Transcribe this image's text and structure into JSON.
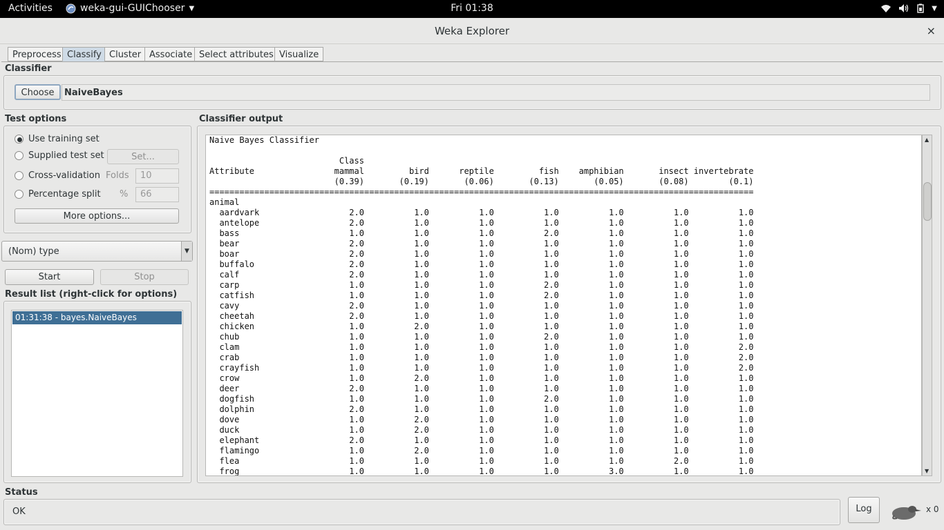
{
  "system": {
    "activities": "Activities",
    "app_name": "weka-gui-GUIChooser",
    "clock": "Fri 01:38"
  },
  "window": {
    "title": "Weka Explorer",
    "close": "×"
  },
  "tabs": [
    "Preprocess",
    "Classify",
    "Cluster",
    "Associate",
    "Select attributes",
    "Visualize"
  ],
  "classifier": {
    "section": "Classifier",
    "choose_label": "Choose",
    "name": "NaiveBayes"
  },
  "test_options": {
    "section": "Test options",
    "use_training": "Use training set",
    "supplied": "Supplied test set",
    "set_button": "Set...",
    "cross_validation": "Cross-validation",
    "folds_label": "Folds",
    "folds_value": "10",
    "percentage_split": "Percentage split",
    "percent_label": "%",
    "percent_value": "66",
    "more_options": "More options..."
  },
  "class_select": "(Nom) type",
  "controls": {
    "start": "Start",
    "stop": "Stop"
  },
  "result_list": {
    "section": "Result list (right-click for options)",
    "items": [
      "01:31:38 - bayes.NaiveBayes"
    ]
  },
  "output": {
    "section": "Classifier output",
    "title": "Naive Bayes Classifier",
    "headers": [
      "Class",
      "mammal",
      "bird",
      "reptile",
      "fish",
      "amphibian",
      "insect",
      "invertebrate"
    ],
    "priors": [
      "(0.39)",
      "(0.19)",
      "(0.06)",
      "(0.13)",
      "(0.05)",
      "(0.08)",
      "(0.1)"
    ],
    "attribute_label": "Attribute",
    "attribute_name": "animal",
    "rows": [
      {
        "name": "aardvark",
        "v": [
          "2.0",
          "1.0",
          "1.0",
          "1.0",
          "1.0",
          "1.0",
          "1.0"
        ]
      },
      {
        "name": "antelope",
        "v": [
          "2.0",
          "1.0",
          "1.0",
          "1.0",
          "1.0",
          "1.0",
          "1.0"
        ]
      },
      {
        "name": "bass",
        "v": [
          "1.0",
          "1.0",
          "1.0",
          "2.0",
          "1.0",
          "1.0",
          "1.0"
        ]
      },
      {
        "name": "bear",
        "v": [
          "2.0",
          "1.0",
          "1.0",
          "1.0",
          "1.0",
          "1.0",
          "1.0"
        ]
      },
      {
        "name": "boar",
        "v": [
          "2.0",
          "1.0",
          "1.0",
          "1.0",
          "1.0",
          "1.0",
          "1.0"
        ]
      },
      {
        "name": "buffalo",
        "v": [
          "2.0",
          "1.0",
          "1.0",
          "1.0",
          "1.0",
          "1.0",
          "1.0"
        ]
      },
      {
        "name": "calf",
        "v": [
          "2.0",
          "1.0",
          "1.0",
          "1.0",
          "1.0",
          "1.0",
          "1.0"
        ]
      },
      {
        "name": "carp",
        "v": [
          "1.0",
          "1.0",
          "1.0",
          "2.0",
          "1.0",
          "1.0",
          "1.0"
        ]
      },
      {
        "name": "catfish",
        "v": [
          "1.0",
          "1.0",
          "1.0",
          "2.0",
          "1.0",
          "1.0",
          "1.0"
        ]
      },
      {
        "name": "cavy",
        "v": [
          "2.0",
          "1.0",
          "1.0",
          "1.0",
          "1.0",
          "1.0",
          "1.0"
        ]
      },
      {
        "name": "cheetah",
        "v": [
          "2.0",
          "1.0",
          "1.0",
          "1.0",
          "1.0",
          "1.0",
          "1.0"
        ]
      },
      {
        "name": "chicken",
        "v": [
          "1.0",
          "2.0",
          "1.0",
          "1.0",
          "1.0",
          "1.0",
          "1.0"
        ]
      },
      {
        "name": "chub",
        "v": [
          "1.0",
          "1.0",
          "1.0",
          "2.0",
          "1.0",
          "1.0",
          "1.0"
        ]
      },
      {
        "name": "clam",
        "v": [
          "1.0",
          "1.0",
          "1.0",
          "1.0",
          "1.0",
          "1.0",
          "2.0"
        ]
      },
      {
        "name": "crab",
        "v": [
          "1.0",
          "1.0",
          "1.0",
          "1.0",
          "1.0",
          "1.0",
          "2.0"
        ]
      },
      {
        "name": "crayfish",
        "v": [
          "1.0",
          "1.0",
          "1.0",
          "1.0",
          "1.0",
          "1.0",
          "2.0"
        ]
      },
      {
        "name": "crow",
        "v": [
          "1.0",
          "2.0",
          "1.0",
          "1.0",
          "1.0",
          "1.0",
          "1.0"
        ]
      },
      {
        "name": "deer",
        "v": [
          "2.0",
          "1.0",
          "1.0",
          "1.0",
          "1.0",
          "1.0",
          "1.0"
        ]
      },
      {
        "name": "dogfish",
        "v": [
          "1.0",
          "1.0",
          "1.0",
          "2.0",
          "1.0",
          "1.0",
          "1.0"
        ]
      },
      {
        "name": "dolphin",
        "v": [
          "2.0",
          "1.0",
          "1.0",
          "1.0",
          "1.0",
          "1.0",
          "1.0"
        ]
      },
      {
        "name": "dove",
        "v": [
          "1.0",
          "2.0",
          "1.0",
          "1.0",
          "1.0",
          "1.0",
          "1.0"
        ]
      },
      {
        "name": "duck",
        "v": [
          "1.0",
          "2.0",
          "1.0",
          "1.0",
          "1.0",
          "1.0",
          "1.0"
        ]
      },
      {
        "name": "elephant",
        "v": [
          "2.0",
          "1.0",
          "1.0",
          "1.0",
          "1.0",
          "1.0",
          "1.0"
        ]
      },
      {
        "name": "flamingo",
        "v": [
          "1.0",
          "2.0",
          "1.0",
          "1.0",
          "1.0",
          "1.0",
          "1.0"
        ]
      },
      {
        "name": "flea",
        "v": [
          "1.0",
          "1.0",
          "1.0",
          "1.0",
          "1.0",
          "2.0",
          "1.0"
        ]
      },
      {
        "name": "frog",
        "v": [
          "1.0",
          "1.0",
          "1.0",
          "1.0",
          "3.0",
          "1.0",
          "1.0"
        ]
      }
    ]
  },
  "status": {
    "section": "Status",
    "text": "OK",
    "log_button": "Log",
    "count": "x 0"
  },
  "colors": {
    "selection": "#3f6f95",
    "selected_tab": "#cfdbe6"
  }
}
